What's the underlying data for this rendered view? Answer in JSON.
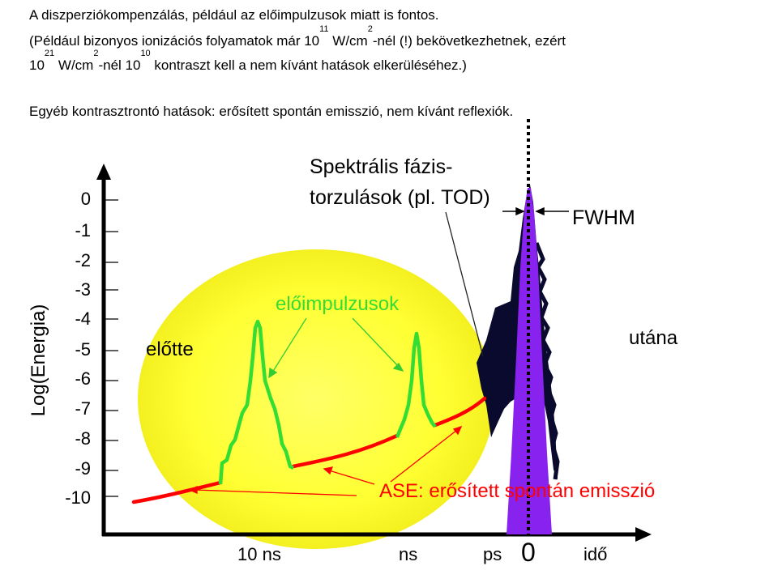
{
  "intro": {
    "line1": "A diszperziókompenzálás, például az előimpulzusok miatt is fontos.",
    "line2_a": "(Például bizonyos ionizációs folyamatok már  10",
    "line2_exp1": "11",
    "line2_b": " W/cm",
    "line2_exp2": "2",
    "line2_c": "-nél (!) bekövetkezhetnek, ezért",
    "line3_a": "10",
    "line3_exp1": "21",
    "line3_b": " W/cm",
    "line3_exp2": "2",
    "line3_c": "-nél 10",
    "line3_exp3": "10",
    "line3_d": " kontraszt kell a nem kívánt hatások elkerüléséhez.)",
    "line4": "Egyéb kontrasztrontó hatások: erősített spontán emisszió, nem kívánt reflexiók."
  },
  "y_axis": {
    "label": "Log(Energia)",
    "ticks": [
      "0",
      "-1",
      "-2",
      "-3",
      "-4",
      "-5",
      "-6",
      "-7",
      "-8",
      "-9",
      "-10"
    ]
  },
  "x_axis": {
    "label": "idő",
    "ticks": [
      "10 ns",
      "ns",
      "ps",
      "0"
    ]
  },
  "labels": {
    "spectral_line1": "Spektrális fázis-",
    "spectral_line2": "torzulások (pl. TOD)",
    "fwhm": "FWHM",
    "prepulses": "előimpulzusok",
    "before": "előtte",
    "after": "utána",
    "ase": "ASE: erősített spontán emisszió"
  },
  "colors": {
    "prepulse": "#33dd33",
    "ase": "#ff0000",
    "halo": "#ffff33",
    "main_pulse": "#8822ee",
    "tod": "#0a0a2e"
  }
}
